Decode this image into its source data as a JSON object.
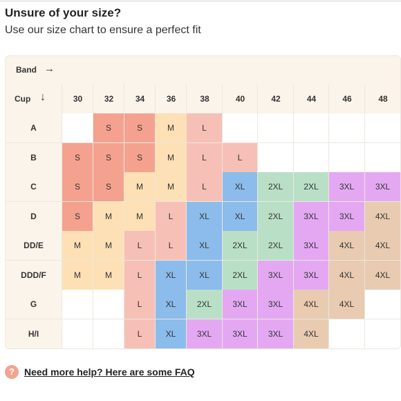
{
  "header": {
    "title": "Unsure of your size?",
    "subtitle": "Use our size chart to ensure a perfect fit"
  },
  "chart": {
    "band_label": "Band",
    "band_arrow": "→",
    "cup_label": "Cup",
    "cup_arrow": "↓",
    "bands": [
      "30",
      "32",
      "34",
      "36",
      "38",
      "40",
      "42",
      "44",
      "46",
      "48"
    ],
    "rows": [
      {
        "cup": "A",
        "sizes": [
          "",
          "S",
          "S",
          "M",
          "L",
          "",
          "",
          "",
          "",
          ""
        ]
      },
      {
        "cup": "B",
        "sizes": [
          "S",
          "S",
          "S",
          "M",
          "L",
          "L",
          "",
          "",
          "",
          ""
        ]
      },
      {
        "cup": "C",
        "sizes": [
          "S",
          "S",
          "M",
          "M",
          "L",
          "XL",
          "2XL",
          "2XL",
          "3XL",
          "3XL"
        ]
      },
      {
        "cup": "D",
        "sizes": [
          "S",
          "M",
          "M",
          "L",
          "XL",
          "XL",
          "2XL",
          "3XL",
          "3XL",
          "4XL"
        ]
      },
      {
        "cup": "DD/E",
        "sizes": [
          "M",
          "M",
          "L",
          "L",
          "XL",
          "2XL",
          "2XL",
          "3XL",
          "4XL",
          "4XL"
        ]
      },
      {
        "cup": "DDD/F",
        "sizes": [
          "M",
          "M",
          "L",
          "XL",
          "XL",
          "2XL",
          "3XL",
          "3XL",
          "4XL",
          "4XL"
        ]
      },
      {
        "cup": "G",
        "sizes": [
          "",
          "",
          "L",
          "XL",
          "2XL",
          "3XL",
          "3XL",
          "4XL",
          "4XL",
          ""
        ]
      },
      {
        "cup": "H/I",
        "sizes": [
          "",
          "",
          "L",
          "XL",
          "3XL",
          "3XL",
          "3XL",
          "4XL",
          "",
          ""
        ]
      }
    ],
    "size_colors": {
      "S": "#f4a28f",
      "M": "#fde0b5",
      "L": "#f7c0b6",
      "XL": "#8bbcec",
      "2XL": "#b9e0c7",
      "3XL": "#e4a8f3",
      "4XL": "#e8cbb0",
      "": "#ffffff"
    },
    "header_bg": "#fbf4ea"
  },
  "footer": {
    "help_icon": "question-icon",
    "help_glyph": "?",
    "faq_link": "Need more help? Here are some FAQ"
  }
}
